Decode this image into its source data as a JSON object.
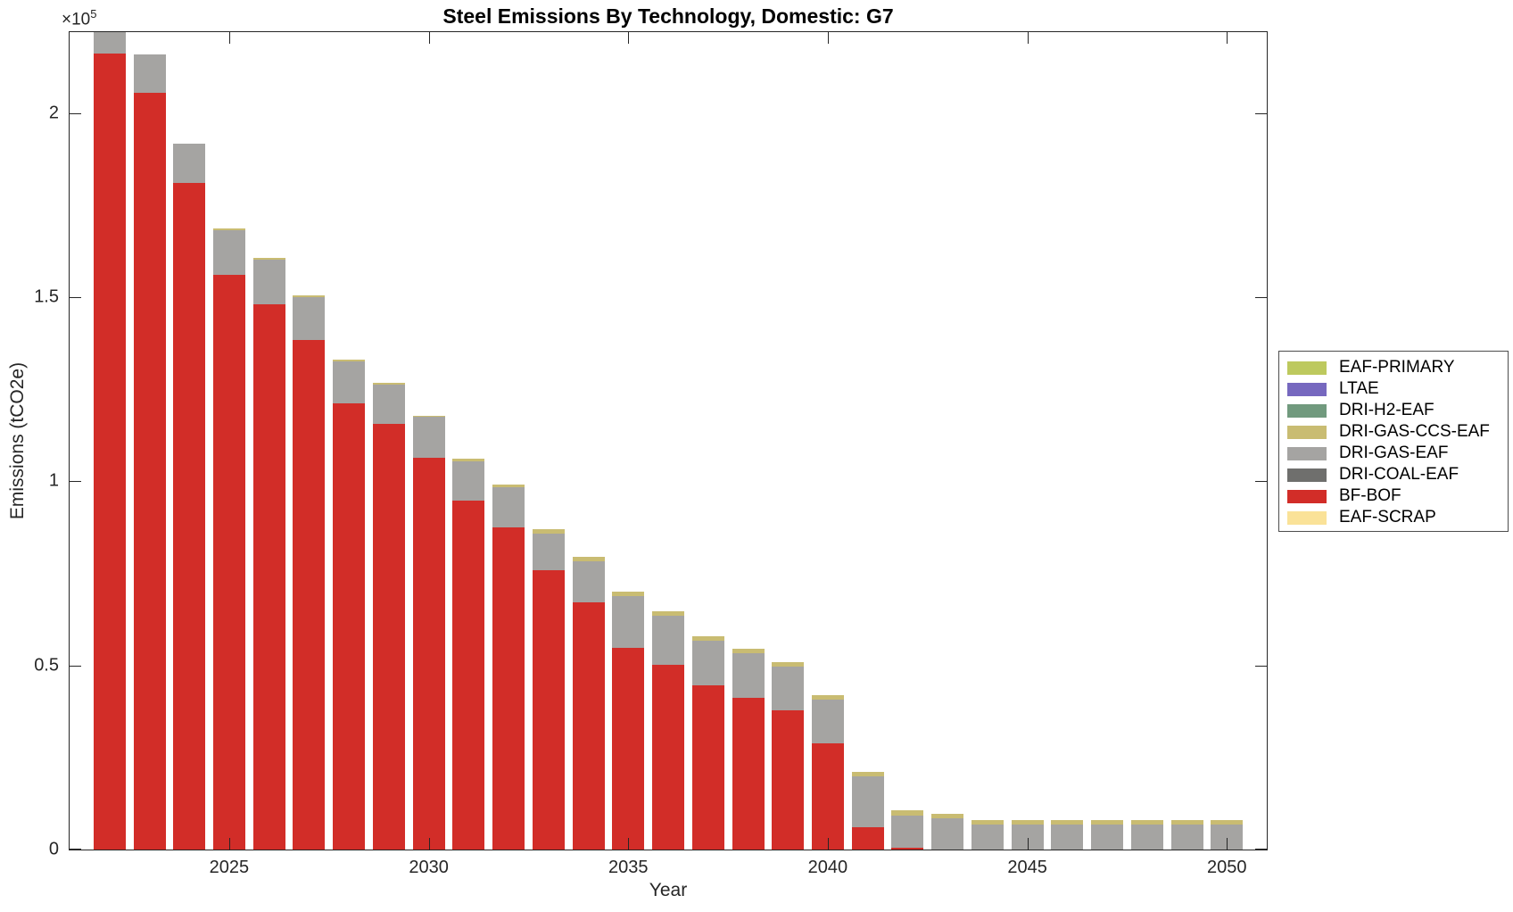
{
  "figure": {
    "title": "Steel Emissions By Technology, Domestic: G7",
    "xlabel": "Year",
    "ylabel": "Emissions (tCO2e)",
    "y_exponent_base": "×10",
    "y_exponent": "5"
  },
  "chart_data": {
    "type": "bar",
    "stacked": true,
    "title": "Steel Emissions By Technology, Domestic: G7",
    "xlabel": "Year",
    "ylabel": "Emissions (tCO2e)",
    "grid": false,
    "x": [
      2022,
      2023,
      2024,
      2025,
      2026,
      2027,
      2028,
      2029,
      2030,
      2031,
      2032,
      2033,
      2034,
      2035,
      2036,
      2037,
      2038,
      2039,
      2040,
      2041,
      2042,
      2043,
      2044,
      2045,
      2046,
      2047,
      2048,
      2049,
      2050
    ],
    "xlim": [
      2021,
      2051
    ],
    "ylim": [
      0,
      222000
    ],
    "xticks": [
      2025,
      2030,
      2035,
      2040,
      2045,
      2050
    ],
    "yticks": {
      "values": [
        0,
        50000,
        100000,
        150000,
        200000
      ],
      "labels": [
        "0",
        "0.5",
        "1",
        "1.5",
        "2"
      ],
      "multiplier_text": "×10^5"
    },
    "bar_width_fraction": 0.8,
    "first_bar_clipped_at_ymax": true,
    "stack_order_bottom_to_top": [
      "EAF-SCRAP",
      "BF-BOF",
      "DRI-COAL-EAF",
      "DRI-GAS-EAF",
      "DRI-GAS-CCS-EAF",
      "DRI-H2-EAF",
      "LTAE",
      "EAF-PRIMARY"
    ],
    "series": [
      {
        "name": "EAF-SCRAP",
        "color": "#FAE298",
        "values": [
          0,
          0,
          0,
          0,
          0,
          0,
          0,
          0,
          0,
          0,
          0,
          0,
          0,
          0,
          0,
          0,
          0,
          0,
          0,
          0,
          0,
          0,
          0,
          0,
          0,
          0,
          0,
          0,
          0
        ]
      },
      {
        "name": "BF-BOF",
        "color": "#D22D28",
        "values": [
          216300,
          205600,
          181000,
          156000,
          148100,
          138400,
          121300,
          115500,
          106300,
          94700,
          87400,
          75900,
          67200,
          54800,
          50200,
          44500,
          41100,
          37900,
          28800,
          6000,
          400,
          0,
          0,
          0,
          0,
          0,
          0,
          0,
          0
        ]
      },
      {
        "name": "DRI-COAL-EAF",
        "color": "#6F6F6D",
        "values": [
          0,
          0,
          0,
          0,
          0,
          0,
          0,
          0,
          0,
          0,
          0,
          0,
          0,
          0,
          0,
          0,
          0,
          0,
          0,
          0,
          0,
          0,
          0,
          0,
          0,
          0,
          0,
          0,
          0
        ]
      },
      {
        "name": "DRI-GAS-EAF",
        "color": "#A5A4A2",
        "values": [
          8700,
          10400,
          10700,
          12200,
          12100,
          11700,
          11400,
          10900,
          11200,
          10700,
          10900,
          9800,
          11000,
          14100,
          13200,
          12300,
          12200,
          11800,
          12000,
          13900,
          8900,
          8400,
          6800,
          6900,
          6900,
          6900,
          6900,
          6900,
          6900
        ]
      },
      {
        "name": "DRI-GAS-CCS-EAF",
        "color": "#C9BC72",
        "values": [
          0,
          0,
          0,
          400,
          400,
          400,
          400,
          400,
          400,
          800,
          800,
          1200,
          1200,
          1200,
          1200,
          1200,
          1200,
          1200,
          1200,
          1200,
          1400,
          1200,
          1200,
          1200,
          1200,
          1200,
          1200,
          1200,
          1200
        ]
      },
      {
        "name": "DRI-H2-EAF",
        "color": "#719A7E",
        "values": [
          0,
          0,
          0,
          0,
          0,
          0,
          0,
          0,
          0,
          0,
          0,
          0,
          0,
          0,
          0,
          0,
          0,
          0,
          0,
          0,
          0,
          0,
          0,
          0,
          0,
          0,
          0,
          0,
          0
        ]
      },
      {
        "name": "LTAE",
        "color": "#7668BF",
        "values": [
          0,
          0,
          0,
          0,
          0,
          0,
          0,
          0,
          0,
          0,
          0,
          0,
          0,
          0,
          0,
          0,
          0,
          0,
          0,
          0,
          0,
          0,
          0,
          0,
          0,
          0,
          0,
          0,
          0
        ]
      },
      {
        "name": "EAF-PRIMARY",
        "color": "#BDC95E",
        "values": [
          0,
          0,
          0,
          0,
          0,
          0,
          0,
          0,
          0,
          0,
          0,
          0,
          0,
          0,
          0,
          0,
          0,
          0,
          0,
          0,
          0,
          0,
          0,
          0,
          0,
          0,
          0,
          0,
          0
        ]
      }
    ],
    "legend": {
      "position": "right",
      "order_top_to_bottom": [
        "EAF-PRIMARY",
        "LTAE",
        "DRI-H2-EAF",
        "DRI-GAS-CCS-EAF",
        "DRI-GAS-EAF",
        "DRI-COAL-EAF",
        "BF-BOF",
        "EAF-SCRAP"
      ]
    }
  }
}
